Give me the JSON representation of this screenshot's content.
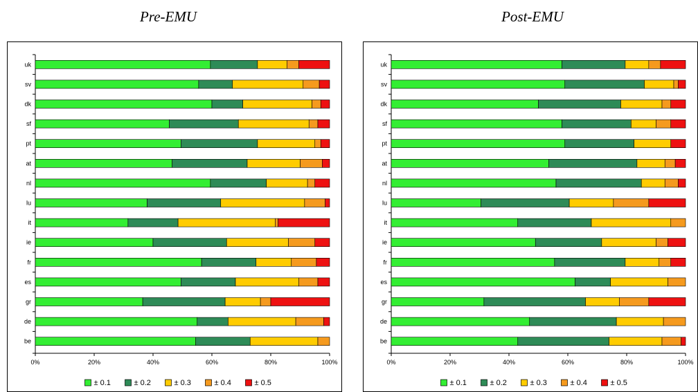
{
  "chart_data": [
    {
      "type": "bar",
      "stacked": true,
      "orientation": "horizontal",
      "title": "Pre-EMU",
      "categories": [
        "uk",
        "sv",
        "dk",
        "sf",
        "pt",
        "at",
        "nl",
        "lu",
        "it",
        "ie",
        "fr",
        "es",
        "gr",
        "de",
        "be"
      ],
      "series": [
        {
          "name": "± 0.1",
          "color": "#33ee33",
          "values": [
            59.5,
            55.5,
            60.0,
            45.5,
            49.5,
            46.5,
            59.5,
            38.0,
            31.5,
            40.0,
            56.5,
            49.5,
            36.5,
            55.0,
            54.5
          ]
        },
        {
          "name": "± 0.2",
          "color": "#2e8b57",
          "values": [
            16.0,
            11.5,
            10.5,
            23.5,
            26.0,
            25.5,
            19.0,
            25.0,
            17.0,
            25.0,
            18.5,
            18.5,
            28.0,
            10.5,
            18.5
          ]
        },
        {
          "name": "± 0.3",
          "color": "#ffcc00",
          "values": [
            10.0,
            24.0,
            23.5,
            24.0,
            19.5,
            18.0,
            14.0,
            28.5,
            33.0,
            21.0,
            12.0,
            21.5,
            12.0,
            23.0,
            23.0
          ]
        },
        {
          "name": "± 0.4",
          "color": "#f59a1e",
          "values": [
            4.0,
            5.5,
            3.0,
            3.0,
            2.0,
            7.5,
            2.5,
            7.0,
            1.0,
            9.0,
            8.5,
            6.5,
            3.5,
            9.5,
            4.0
          ]
        },
        {
          "name": "± 0.5",
          "color": "#ee1111",
          "values": [
            10.5,
            3.5,
            3.0,
            4.0,
            3.0,
            2.5,
            5.0,
            1.5,
            17.5,
            5.0,
            4.5,
            4.0,
            20.0,
            2.0,
            0.0
          ]
        }
      ],
      "xlim": [
        0,
        100
      ],
      "xticks": [
        "0%",
        "20%",
        "40%",
        "60%",
        "80%",
        "100%"
      ],
      "legend": "bottom"
    },
    {
      "type": "bar",
      "stacked": true,
      "orientation": "horizontal",
      "title": "Post-EMU",
      "categories": [
        "uk",
        "sv",
        "dk",
        "sf",
        "pt",
        "at",
        "nl",
        "lu",
        "it",
        "ie",
        "fr",
        "es",
        "gr",
        "de",
        "be"
      ],
      "series": [
        {
          "name": "± 0.1",
          "color": "#33ee33",
          "values": [
            58.0,
            59.0,
            50.0,
            58.0,
            59.0,
            53.5,
            56.0,
            30.5,
            43.0,
            49.0,
            55.5,
            62.5,
            31.5,
            47.0,
            43.0
          ]
        },
        {
          "name": "± 0.2",
          "color": "#2e8b57",
          "values": [
            21.5,
            27.0,
            28.0,
            23.5,
            23.5,
            30.0,
            29.0,
            30.0,
            25.0,
            22.5,
            24.0,
            12.0,
            34.5,
            29.5,
            31.0
          ]
        },
        {
          "name": "± 0.3",
          "color": "#ffcc00",
          "values": [
            8.0,
            10.0,
            14.0,
            8.5,
            12.5,
            9.5,
            8.0,
            15.0,
            27.0,
            18.5,
            11.5,
            19.5,
            11.5,
            16.0,
            18.0
          ]
        },
        {
          "name": "± 0.4",
          "color": "#f59a1e",
          "values": [
            4.0,
            1.5,
            3.0,
            5.0,
            0.0,
            3.5,
            4.5,
            12.0,
            5.0,
            4.0,
            4.0,
            6.0,
            10.0,
            7.5,
            6.5
          ]
        },
        {
          "name": "± 0.5",
          "color": "#ee1111",
          "values": [
            8.5,
            2.5,
            5.0,
            5.0,
            5.0,
            3.5,
            2.5,
            12.5,
            0.0,
            6.0,
            5.0,
            0.0,
            12.5,
            0.0,
            1.5
          ]
        }
      ],
      "xlim": [
        0,
        100
      ],
      "xticks": [
        "0%",
        "20%",
        "40%",
        "60%",
        "80%",
        "100%"
      ],
      "legend": "bottom"
    }
  ]
}
